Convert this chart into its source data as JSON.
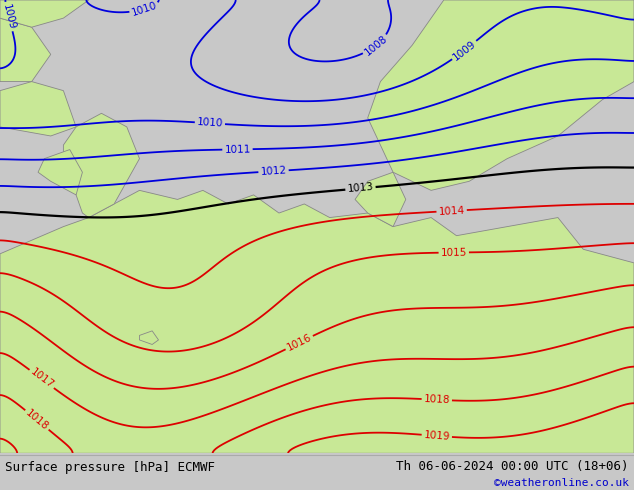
{
  "title_left": "Surface pressure [hPa] ECMWF",
  "title_right": "Th 06-06-2024 00:00 UTC (18+06)",
  "credit": "©weatheronline.co.uk",
  "bg_color": "#c8c8c8",
  "land_color": "#c8e896",
  "sea_color": "#c8c8c8",
  "blue_color": "#0000dd",
  "black_color": "#000000",
  "red_color": "#dd0000",
  "bottom_color": "#f0f0f0",
  "text_color": "#000000",
  "credit_color": "#0000cc",
  "figsize": [
    6.34,
    4.9
  ],
  "dpi": 100
}
